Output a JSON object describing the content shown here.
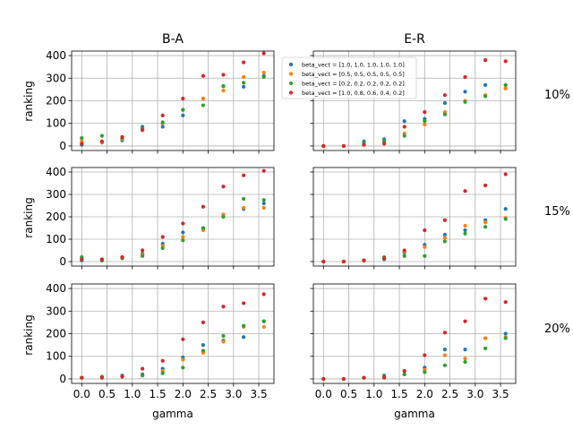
{
  "figure": {
    "colors": [
      "#1f77b4",
      "#ff7f0e",
      "#2ca02c",
      "#d62728"
    ]
  },
  "chart_data": {
    "type": "scatter",
    "columns": [
      "B-A",
      "E-R"
    ],
    "rows": [
      "10%",
      "15%",
      "20%"
    ],
    "xlabel": "gamma",
    "ylabel": "ranking",
    "xlim": [
      -0.2,
      3.8
    ],
    "ylim": [
      -20,
      420
    ],
    "xticks": [
      0.0,
      0.5,
      1.0,
      1.5,
      2.0,
      2.5,
      3.0,
      3.5
    ],
    "yticks": [
      0,
      100,
      200,
      300,
      400
    ],
    "grid": true,
    "legend": {
      "placement": "upper-left of top-right panel",
      "entries": [
        "beta_vect = [1.0, 1.0, 1.0, 1.0, 1.0]",
        "beta_vect = [0.5, 0.5, 0.5, 0.5, 0.5]",
        "beta_vect = [0.2, 0.2, 0.2, 0.2, 0.2]",
        "beta_vect = [1.0, 0.8, 0.6, 0.4, 0.2]"
      ]
    },
    "x": [
      0.0,
      0.4,
      0.8,
      1.2,
      1.6,
      2.0,
      2.4,
      2.8,
      3.2,
      3.6
    ],
    "panels": [
      {
        "row": "10%",
        "col": "B-A",
        "series": [
          {
            "values": [
              5,
              15,
              25,
              85,
              85,
              135,
              210,
              265,
              262,
              310
            ]
          },
          {
            "values": [
              20,
              15,
              30,
              75,
              100,
              160,
              210,
              245,
              305,
              325
            ]
          },
          {
            "values": [
              35,
              45,
              35,
              75,
              105,
              160,
              180,
              265,
              280,
              305
            ]
          },
          {
            "values": [
              10,
              20,
              40,
              70,
              135,
              210,
              310,
              315,
              370,
              410
            ]
          }
        ]
      },
      {
        "row": "10%",
        "col": "E-R",
        "series": [
          {
            "values": [
              0,
              0,
              20,
              30,
              110,
              120,
              190,
              240,
              270,
              255
            ]
          },
          {
            "values": [
              0,
              0,
              10,
              20,
              55,
              95,
              150,
              200,
              225,
              255
            ]
          },
          {
            "values": [
              0,
              0,
              15,
              20,
              45,
              110,
              140,
              195,
              220,
              270
            ]
          },
          {
            "values": [
              0,
              0,
              5,
              10,
              85,
              150,
              225,
              305,
              380,
              375
            ]
          }
        ]
      },
      {
        "row": "15%",
        "col": "B-A",
        "series": [
          {
            "values": [
              5,
              5,
              15,
              35,
              80,
              130,
              145,
              210,
              235,
              260
            ]
          },
          {
            "values": [
              10,
              10,
              20,
              30,
              70,
              110,
              140,
              210,
              240,
              240
            ]
          },
          {
            "values": [
              20,
              5,
              15,
              25,
              60,
              95,
              150,
              200,
              280,
              275
            ]
          },
          {
            "values": [
              10,
              10,
              20,
              50,
              110,
              170,
              245,
              335,
              385,
              405
            ]
          }
        ]
      },
      {
        "row": "15%",
        "col": "E-R",
        "series": [
          {
            "values": [
              0,
              0,
              5,
              10,
              40,
              75,
              120,
              140,
              185,
              235
            ]
          },
          {
            "values": [
              0,
              0,
              5,
              15,
              45,
              65,
              105,
              160,
              175,
              195
            ]
          },
          {
            "values": [
              0,
              0,
              5,
              20,
              25,
              25,
              90,
              125,
              155,
              190
            ]
          },
          {
            "values": [
              0,
              0,
              5,
              15,
              50,
              140,
              185,
              315,
              340,
              390
            ]
          }
        ]
      },
      {
        "row": "20%",
        "col": "B-A",
        "series": [
          {
            "values": [
              5,
              5,
              15,
              20,
              45,
              95,
              150,
              170,
              185,
              255
            ]
          },
          {
            "values": [
              5,
              10,
              10,
              15,
              35,
              85,
              115,
              165,
              230,
              230
            ]
          },
          {
            "values": [
              5,
              10,
              10,
              15,
              25,
              50,
              125,
              190,
              235,
              255
            ]
          },
          {
            "values": [
              5,
              5,
              10,
              45,
              80,
              175,
              250,
              320,
              335,
              375
            ]
          }
        ]
      },
      {
        "row": "20%",
        "col": "E-R",
        "series": [
          {
            "values": [
              0,
              0,
              5,
              15,
              35,
              50,
              130,
              130,
              180,
              200
            ]
          },
          {
            "values": [
              0,
              0,
              5,
              10,
              20,
              40,
              105,
              90,
              180,
              185
            ]
          },
          {
            "values": [
              0,
              0,
              5,
              10,
              20,
              30,
              60,
              75,
              135,
              180
            ]
          },
          {
            "values": [
              0,
              0,
              5,
              5,
              35,
              105,
              205,
              255,
              355,
              340
            ]
          }
        ]
      }
    ]
  }
}
